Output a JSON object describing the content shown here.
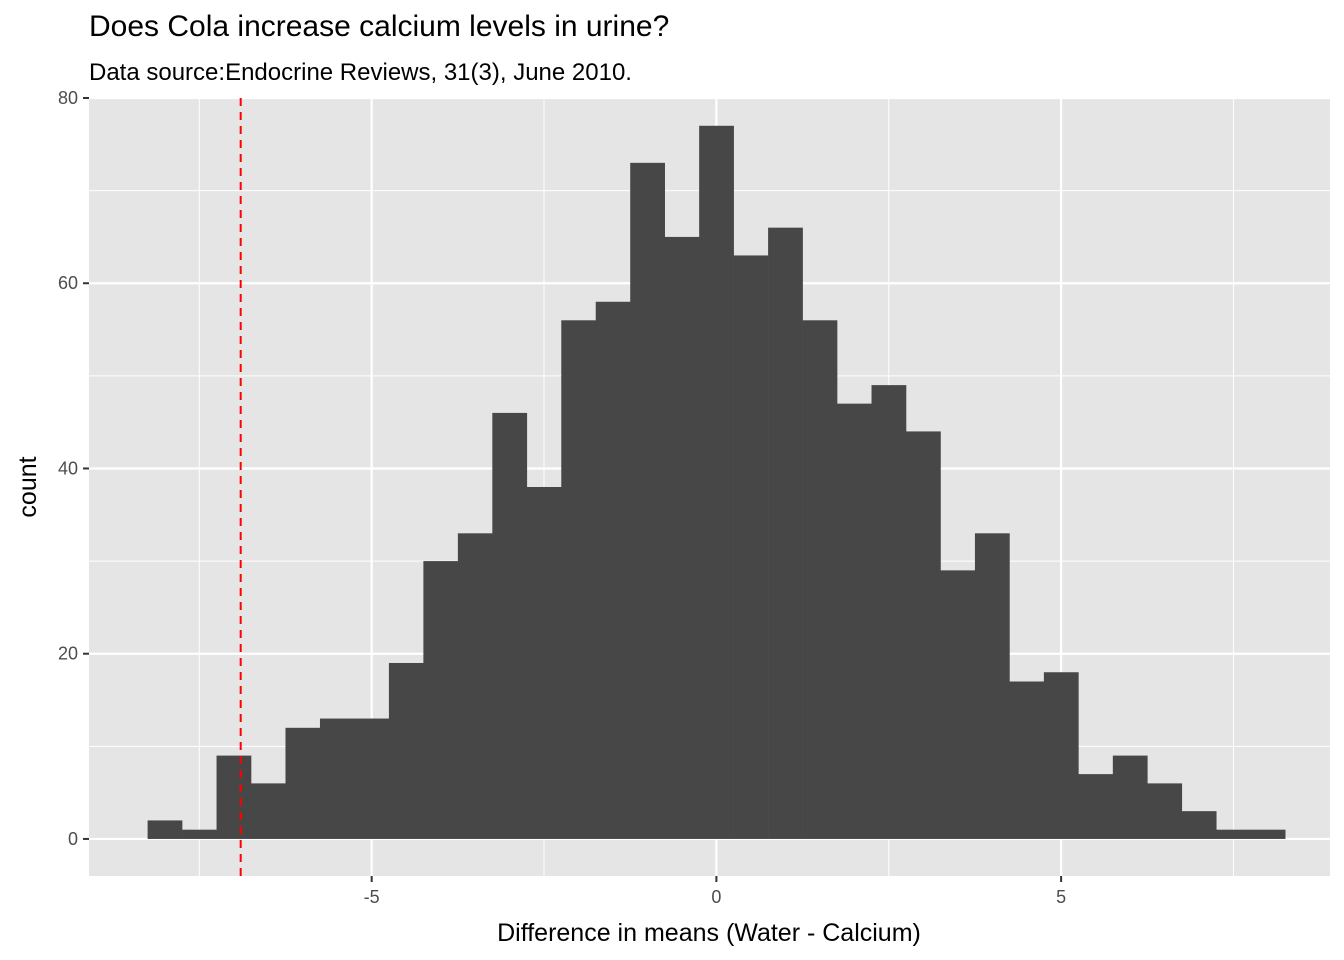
{
  "chart_data": {
    "type": "bar",
    "subtype": "histogram",
    "title": "Does Cola increase calcium levels in urine?",
    "subtitle": "Data source:Endocrine Reviews, 31(3), June 2010.",
    "xlabel": "Difference in means (Water - Calcium)",
    "ylabel": "count",
    "xlim": [
      -9.1,
      8.9
    ],
    "ylim": [
      -4,
      80
    ],
    "bin_width": 0.5,
    "bin_start": -8.25,
    "values": [
      2,
      1,
      9,
      6,
      12,
      13,
      13,
      19,
      30,
      33,
      46,
      38,
      56,
      58,
      73,
      65,
      77,
      63,
      66,
      56,
      47,
      49,
      44,
      29,
      33,
      17,
      18,
      7,
      9,
      6,
      3,
      1,
      1
    ],
    "x_ticks": [
      -5,
      0,
      5
    ],
    "x_tick_labels": [
      "-5",
      "0",
      "5"
    ],
    "y_ticks": [
      0,
      20,
      40,
      60,
      80
    ],
    "y_tick_labels": [
      "0",
      "20",
      "40",
      "60",
      "80"
    ],
    "reference_line": {
      "x": -6.9,
      "color": "#ff0000",
      "style": "dashed"
    },
    "bar_color": "#474747",
    "panel_color": "#e5e5e5",
    "grid": true,
    "legend": "none"
  }
}
